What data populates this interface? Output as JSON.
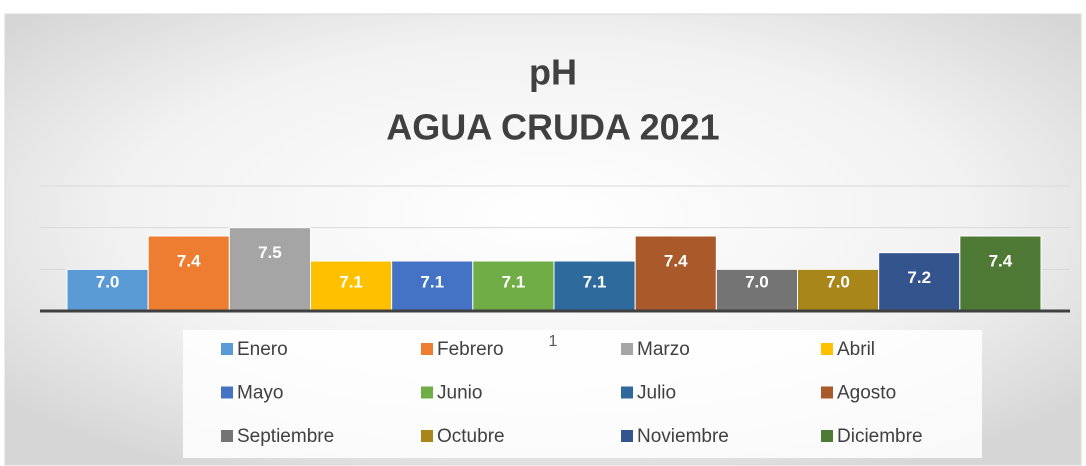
{
  "chart_data": {
    "type": "bar",
    "title": "pH",
    "subtitle": "AGUA CRUDA 2021",
    "categories": [
      "1"
    ],
    "series": [
      {
        "name": "Enero",
        "color": "#5b9bd5",
        "values": [
          7.0
        ],
        "value_labels": [
          "7.0"
        ]
      },
      {
        "name": "Febrero",
        "color": "#ed7d31",
        "values": [
          7.4
        ],
        "value_labels": [
          "7.4"
        ]
      },
      {
        "name": "Marzo",
        "color": "#a5a5a5",
        "values": [
          7.5
        ],
        "value_labels": [
          "7.5"
        ]
      },
      {
        "name": "Abril",
        "color": "#ffc000",
        "values": [
          7.1
        ],
        "value_labels": [
          "7.1"
        ]
      },
      {
        "name": "Mayo",
        "color": "#4472c4",
        "values": [
          7.1
        ],
        "value_labels": [
          "7.1"
        ]
      },
      {
        "name": "Junio",
        "color": "#70ad47",
        "values": [
          7.1
        ],
        "value_labels": [
          "7.1"
        ]
      },
      {
        "name": "Julio",
        "color": "#2e6a9c",
        "values": [
          7.1
        ],
        "value_labels": [
          "7.1"
        ]
      },
      {
        "name": "Agosto",
        "color": "#a9592a",
        "values": [
          7.4
        ],
        "value_labels": [
          "7.4"
        ]
      },
      {
        "name": "Septiembre",
        "color": "#747474",
        "values": [
          7.0
        ],
        "value_labels": [
          "7.0"
        ]
      },
      {
        "name": "Octubre",
        "color": "#a8861a",
        "values": [
          7.0
        ],
        "value_labels": [
          "7.0"
        ]
      },
      {
        "name": "Noviembre",
        "color": "#33548c",
        "values": [
          7.2
        ],
        "value_labels": [
          "7.2"
        ]
      },
      {
        "name": "Diciembre",
        "color": "#4f7a36",
        "values": [
          7.4
        ],
        "value_labels": [
          "7.4"
        ]
      }
    ],
    "ylim": [
      6.5,
      8.0
    ],
    "yticks": [
      7.0,
      7.5,
      8.0
    ],
    "grid": true,
    "legend": "bottom"
  }
}
